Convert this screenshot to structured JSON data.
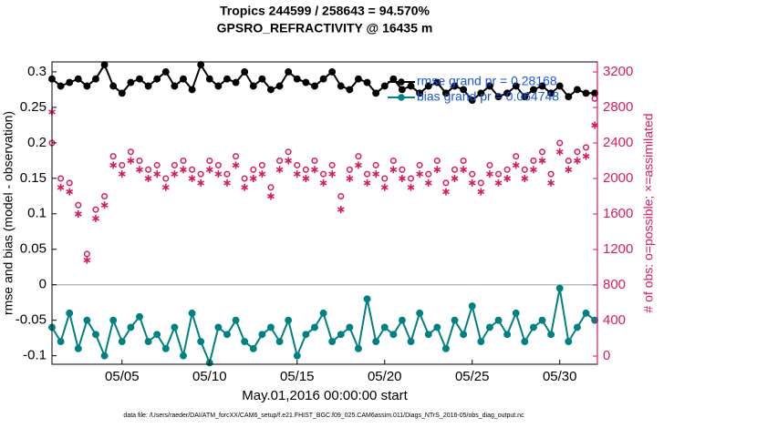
{
  "chart_data": {
    "type": "line",
    "title": [
      "Tropics 244599 / 258643 = 94.570%",
      "GPSRO_REFRACTIVITY @ 16435 m"
    ],
    "xlabel": "May.01,2016 00:00:00 start",
    "ylabel": "rmse and bias (model - observation)",
    "y2label": "# of obs: o=possible; ×=assimilated",
    "footnote": "data file: /Users/raeder/DAI/ATM_forcXX/CAM6_setup/f.e21.FHIST_BGC.f09_025.CAM6assim.011/Diags_NTrS_2016-05/obs_diag_output.nc",
    "x": [
      0,
      0.5,
      1,
      1.5,
      2,
      2.5,
      3,
      3.5,
      4,
      4.5,
      5,
      5.5,
      6,
      6.5,
      7,
      7.5,
      8,
      8.5,
      9,
      9.5,
      10,
      10.5,
      11,
      11.5,
      12,
      12.5,
      13,
      13.5,
      14,
      14.5,
      15,
      15.5,
      16,
      16.5,
      17,
      17.5,
      18,
      18.5,
      19,
      19.5,
      20,
      20.5,
      21,
      21.5,
      22,
      22.5,
      23,
      23.5,
      24,
      24.5,
      25,
      25.5,
      26,
      26.5,
      27,
      27.5,
      28,
      28.5,
      29,
      29.5,
      30,
      30.5,
      31
    ],
    "xlim": [
      0,
      31.15
    ],
    "xticks": [
      {
        "value": 4,
        "label": "05/05"
      },
      {
        "value": 9,
        "label": "05/10"
      },
      {
        "value": 14,
        "label": "05/15"
      },
      {
        "value": 19,
        "label": "05/20"
      },
      {
        "value": 24,
        "label": "05/25"
      },
      {
        "value": 29,
        "label": "05/30"
      }
    ],
    "ylim": [
      -0.112,
      0.314
    ],
    "yticks": [
      -0.1,
      -0.05,
      0,
      0.05,
      0.1,
      0.15,
      0.2,
      0.25,
      0.3
    ],
    "y2lim": [
      -92,
      3313
    ],
    "y2ticks": [
      0,
      400,
      800,
      1200,
      1600,
      2000,
      2400,
      2800,
      3200
    ],
    "legend": "upper right",
    "series": [
      {
        "name": "rmse grand pr = 0.28168",
        "color": "#000000",
        "marker": "o",
        "line": true,
        "fill": true,
        "values": [
          0.29,
          0.28,
          0.285,
          0.29,
          0.28,
          0.29,
          0.31,
          0.28,
          0.27,
          0.285,
          0.29,
          0.28,
          0.29,
          0.3,
          0.28,
          0.29,
          0.275,
          0.31,
          0.29,
          0.28,
          0.29,
          0.285,
          0.3,
          0.28,
          0.29,
          0.275,
          0.28,
          0.3,
          0.29,
          0.285,
          0.28,
          0.29,
          0.3,
          0.28,
          0.275,
          0.29,
          0.285,
          0.27,
          0.28,
          0.29,
          0.275,
          0.28,
          0.27,
          0.28,
          0.285,
          0.27,
          0.28,
          0.275,
          0.26,
          0.27,
          0.28,
          0.265,
          0.27,
          0.28,
          0.265,
          0.275,
          0.28,
          0.27,
          0.28,
          0.265,
          0.275,
          0.27,
          0.27
        ]
      },
      {
        "name": "bias grand pr = 0.064748",
        "color": "#008080",
        "marker": "o",
        "line": true,
        "fill": true,
        "values": [
          -0.06,
          -0.08,
          -0.04,
          -0.09,
          -0.05,
          -0.07,
          -0.1,
          -0.05,
          -0.08,
          -0.06,
          -0.045,
          -0.08,
          -0.07,
          -0.09,
          -0.06,
          -0.1,
          -0.04,
          -0.08,
          -0.11,
          -0.06,
          -0.07,
          -0.05,
          -0.08,
          -0.09,
          -0.07,
          -0.06,
          -0.08,
          -0.05,
          -0.1,
          -0.07,
          -0.06,
          -0.04,
          -0.08,
          -0.07,
          -0.06,
          -0.09,
          -0.02,
          -0.08,
          -0.06,
          -0.07,
          -0.05,
          -0.08,
          -0.04,
          -0.07,
          -0.06,
          -0.09,
          -0.05,
          -0.07,
          -0.03,
          -0.08,
          -0.06,
          -0.05,
          -0.07,
          -0.04,
          -0.08,
          -0.06,
          -0.05,
          -0.07,
          -0.005,
          -0.08,
          -0.06,
          -0.04,
          -0.05
        ]
      },
      {
        "color": "#d81b60",
        "marker": "o",
        "line": false,
        "fill": false,
        "axis": "y2",
        "values": [
          2400,
          2000,
          1950,
          1700,
          1150,
          1650,
          1800,
          2250,
          2150,
          2300,
          2200,
          2100,
          2150,
          2000,
          2150,
          2200,
          2100,
          2050,
          2200,
          2150,
          2050,
          2250,
          2000,
          2100,
          2150,
          1900,
          2200,
          2300,
          2150,
          2100,
          2200,
          2050,
          2150,
          1800,
          2100,
          2250,
          2050,
          2150,
          2000,
          2200,
          2100,
          2000,
          2150,
          2050,
          2200,
          1950,
          2100,
          2200,
          2050,
          1950,
          2150,
          2050,
          2100,
          2250,
          2100,
          2200,
          2300,
          2050,
          2400,
          2200,
          2300,
          2350,
          2900
        ]
      },
      {
        "color": "#d81b60",
        "marker": "*",
        "line": false,
        "fill": false,
        "axis": "y2",
        "values": [
          2750,
          1900,
          1850,
          1600,
          1080,
          1550,
          1700,
          2150,
          2050,
          2200,
          2100,
          2000,
          2050,
          1900,
          2050,
          2100,
          2000,
          1950,
          2100,
          2050,
          1950,
          2150,
          1900,
          2000,
          2050,
          1800,
          2100,
          2200,
          2050,
          2000,
          2100,
          1950,
          2050,
          1650,
          2000,
          2150,
          1950,
          2050,
          1900,
          2100,
          2000,
          1900,
          2050,
          1950,
          2100,
          1850,
          2000,
          2100,
          1950,
          1850,
          2050,
          1950,
          2000,
          2150,
          2000,
          2100,
          2200,
          1950,
          2300,
          2100,
          2200,
          2250,
          2600
        ]
      }
    ]
  }
}
